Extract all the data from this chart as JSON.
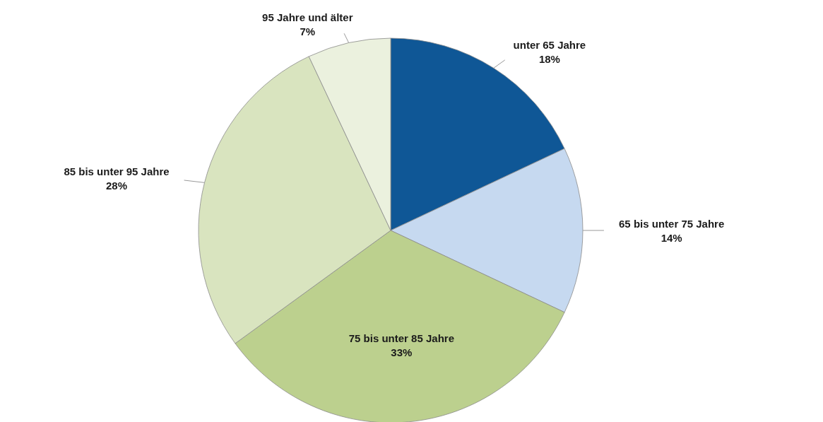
{
  "chart_data": {
    "type": "pie",
    "categories": [
      "unter 65 Jahre",
      "65 bis unter 75 Jahre",
      "75 bis unter 85 Jahre",
      "85 bis unter 95 Jahre",
      "95 Jahre und älter"
    ],
    "values": [
      18,
      14,
      33,
      28,
      7
    ],
    "colors": [
      "#0f5796",
      "#c6d9f0",
      "#bcd08e",
      "#d9e4bf",
      "#ebf1de"
    ],
    "value_labels": [
      "18%",
      "14%",
      "33%",
      "28%",
      "7%"
    ]
  }
}
